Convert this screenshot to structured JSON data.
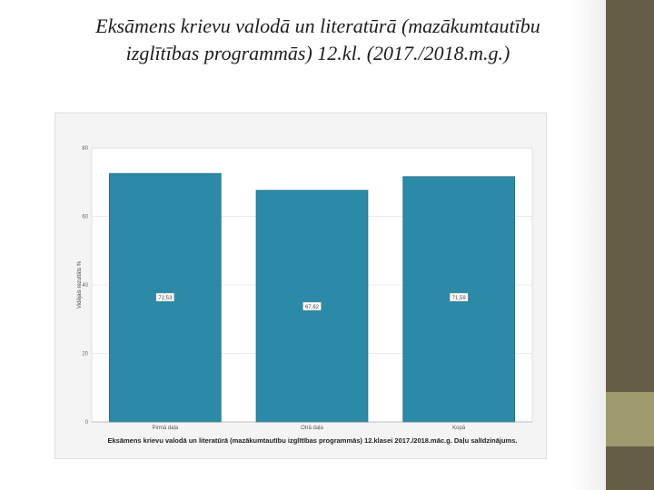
{
  "slide": {
    "title_line1": "Eksāmens krievu valodā un literatūrā (mazākumtautību",
    "title_line2": "izglītības programmās)   12.kl. (2017./2018.m.g.)"
  },
  "colors": {
    "bar": "#2b8aa7",
    "bar_edge": "#1f6d86",
    "panel_dark": "#655d46",
    "panel_light": "#9d9a6e"
  },
  "chart_data": {
    "type": "bar",
    "categories": [
      "Pirmā daļa",
      "Otrā daļa",
      "Kopā"
    ],
    "values": [
      72.53,
      67.62,
      71.59
    ],
    "value_labels": [
      "72,53",
      "67,62",
      "71,59"
    ],
    "ylabel": "Vidējais rezultāts %",
    "ylim": [
      0,
      80
    ],
    "yticks": [
      0,
      20,
      40,
      60,
      80
    ],
    "caption": "Eksāmens krievu valodā un literatūrā (mazākumtautību izglītības programmās) 12.klasei 2017./2018.māc.g. Daļu salīdzinājums.",
    "grid": true
  }
}
